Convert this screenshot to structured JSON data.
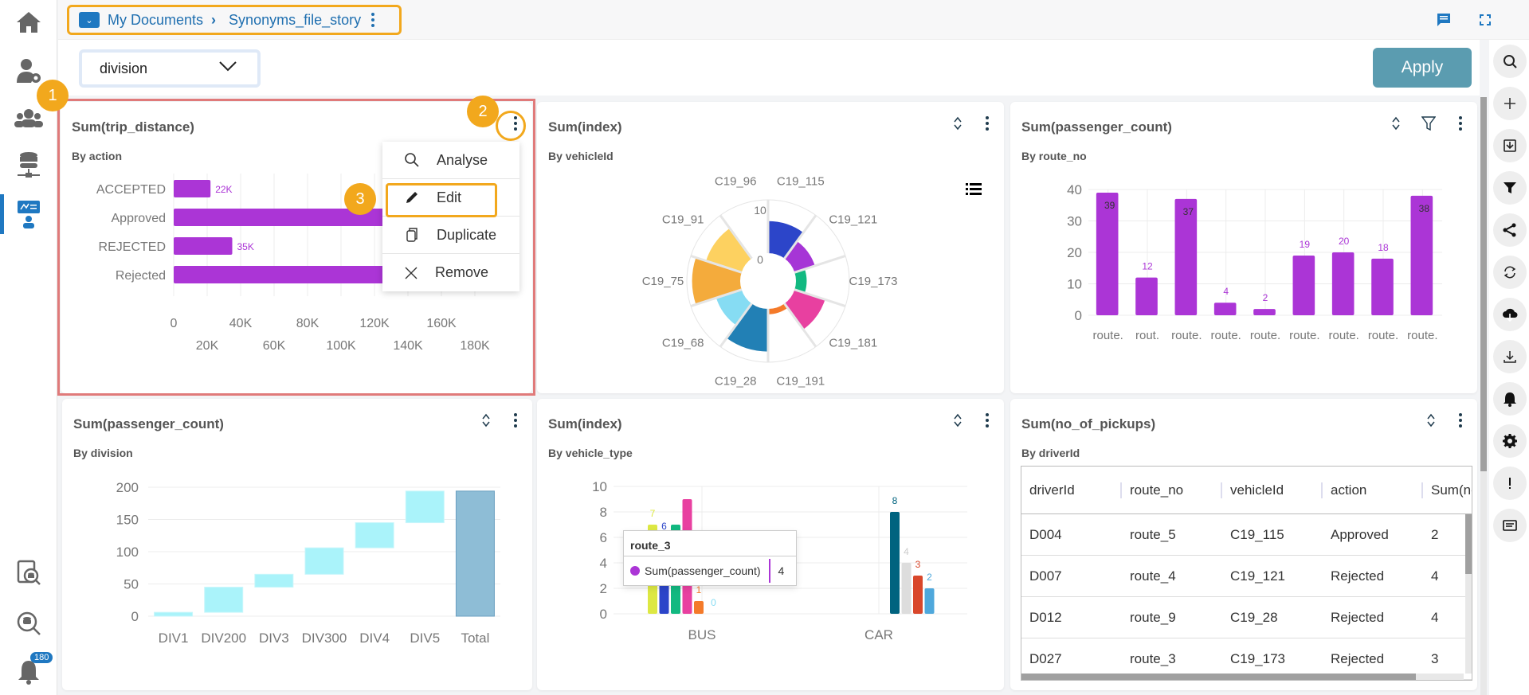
{
  "breadcrumb": {
    "root": "My Documents",
    "current": "Synonyms_file_story"
  },
  "filter": {
    "selected": "division"
  },
  "apply_label": "Apply",
  "sidebar": {
    "notification_count": "180"
  },
  "annotations": [
    "1",
    "2",
    "3"
  ],
  "context_menu": {
    "items": [
      {
        "label": "Analyse",
        "icon": "search-icon"
      },
      {
        "label": "Edit",
        "icon": "pencil-icon"
      },
      {
        "label": "Duplicate",
        "icon": "copy-icon"
      },
      {
        "label": "Remove",
        "icon": "close-icon"
      }
    ]
  },
  "right_toolbar": [
    "search-icon",
    "plus-icon",
    "import-icon",
    "filter-icon",
    "share-icon",
    "refresh-icon",
    "cloud-download-icon",
    "download-icon",
    "bell-icon",
    "gear-icon",
    "alert-icon",
    "comment-icon"
  ],
  "cards": [
    {
      "title": "Sum(trip_distance)",
      "subtitle": "By action"
    },
    {
      "title": "Sum(index)",
      "subtitle": "By vehicleId"
    },
    {
      "title": "Sum(passenger_count)",
      "subtitle": "By route_no"
    },
    {
      "title": "Sum(passenger_count)",
      "subtitle": "By division"
    },
    {
      "title": "Sum(index)",
      "subtitle": "By vehicle_type"
    },
    {
      "title": "Sum(no_of_pickups)",
      "subtitle": "By driverId"
    }
  ],
  "tooltip": {
    "title": "route_3",
    "series": "Sum(passenger_count)",
    "value": "4"
  },
  "table": {
    "headers": [
      "driverId",
      "route_no",
      "vehicleId",
      "action",
      "Sum(no"
    ],
    "rows": [
      [
        "D004",
        "route_5",
        "C19_115",
        "Approved",
        "2"
      ],
      [
        "D007",
        "route_4",
        "C19_121",
        "Rejected",
        "4"
      ],
      [
        "D012",
        "route_9",
        "C19_28",
        "Rejected",
        "4"
      ],
      [
        "D027",
        "route_3",
        "C19_173",
        "Rejected",
        "3"
      ]
    ]
  },
  "chart_data": [
    {
      "type": "bar",
      "orientation": "horizontal",
      "title": "Sum(trip_distance)",
      "subtitle": "By action",
      "categories": [
        "ACCEPTED",
        "Approved",
        "REJECTED",
        "Rejected"
      ],
      "values": [
        22000,
        160000,
        35000,
        164000
      ],
      "data_labels": [
        "22K",
        "",
        "35K",
        ""
      ],
      "xlim": [
        0,
        180000
      ],
      "xticks_top": [
        "0",
        "40K",
        "80K",
        "120K",
        "160K"
      ],
      "xticks_bottom": [
        "20K",
        "60K",
        "100K",
        "140K",
        "180K"
      ],
      "color": "#ab35d6"
    },
    {
      "type": "pie",
      "variant": "polar-area",
      "title": "Sum(index)",
      "subtitle": "By vehicleId",
      "categories": [
        "C19_115",
        "C19_121",
        "C19_173",
        "C19_181",
        "C19_191",
        "C19_28",
        "C19_68",
        "C19_75",
        "C19_91",
        "C19_96"
      ],
      "values": [
        6,
        4,
        2,
        6,
        1,
        8,
        5,
        9,
        7,
        0
      ],
      "colors": [
        "#2c45c9",
        "#a635d6",
        "#12b981",
        "#e840a0",
        "#f47a2a",
        "#2280b5",
        "#86dcf3",
        "#f4ab3c",
        "#fdd160",
        "#cccccc"
      ],
      "rlim": [
        0,
        10
      ],
      "rticks": [
        "0",
        "10"
      ]
    },
    {
      "type": "bar",
      "title": "Sum(passenger_count)",
      "subtitle": "By route_no",
      "categories": [
        "route.",
        "rout.",
        "route.",
        "route.",
        "route.",
        "route.",
        "route.",
        "route.",
        "route."
      ],
      "values": [
        39,
        12,
        37,
        4,
        2,
        19,
        20,
        18,
        38
      ],
      "ylim": [
        0,
        40
      ],
      "yticks": [
        "0",
        "10",
        "20",
        "30",
        "40"
      ],
      "color": "#ab35d6"
    },
    {
      "type": "bar",
      "variant": "waterfall",
      "title": "Sum(passenger_count)",
      "subtitle": "By division",
      "categories": [
        "DIV1",
        "DIV200",
        "DIV3",
        "DIV300",
        "DIV4",
        "DIV5",
        "Total"
      ],
      "values": [
        6,
        39,
        20,
        41,
        39,
        49,
        194
      ],
      "ylim": [
        0,
        200
      ],
      "yticks": [
        "0",
        "50",
        "100",
        "150",
        "200"
      ],
      "colors": {
        "step": "#aaf3fa",
        "total": "#8ebdd6"
      }
    },
    {
      "type": "bar",
      "variant": "grouped",
      "title": "Sum(index)",
      "subtitle": "By vehicle_type",
      "categories": [
        "BUS",
        "CAR"
      ],
      "series": [
        {
          "group": "BUS",
          "values": [
            7,
            6,
            7,
            9,
            1,
            0
          ],
          "colors": [
            "#dde843",
            "#2c45c9",
            "#12b981",
            "#e840a0",
            "#f47a2a",
            "#86dcf3"
          ],
          "labels": [
            "7",
            "6",
            "",
            "",
            "1",
            "0"
          ]
        },
        {
          "group": "CAR",
          "values": [
            8,
            4,
            3,
            2
          ],
          "colors": [
            "#00637f",
            "#dddddd",
            "#d9472b",
            "#4fa8dc"
          ],
          "labels": [
            "8",
            "4",
            "3",
            "2"
          ]
        }
      ],
      "ylim": [
        0,
        10
      ],
      "yticks": [
        "0",
        "2",
        "4",
        "6",
        "8",
        "10"
      ]
    },
    {
      "type": "table",
      "title": "Sum(no_of_pickups)",
      "subtitle": "By driverId"
    }
  ]
}
